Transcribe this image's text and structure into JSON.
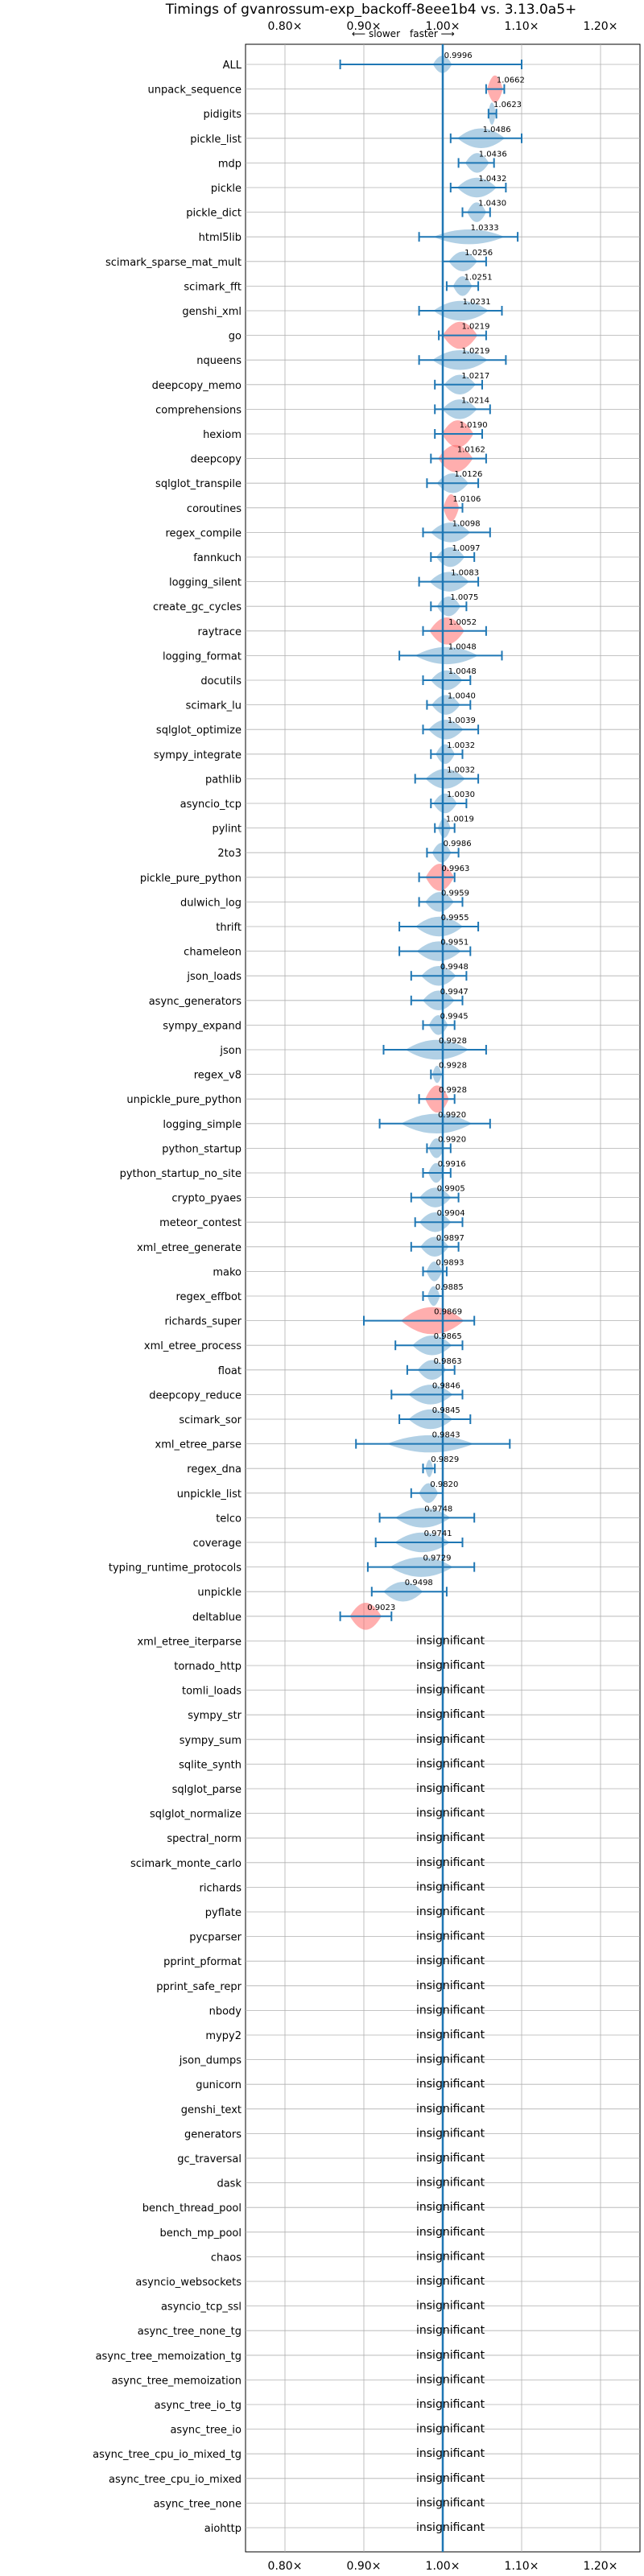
{
  "chart_data": {
    "type": "violin",
    "title": "Timings of gvanrossum-exp_backoff-8eee1b4 vs. 3.13.0a5+",
    "direction_labels": {
      "slower": "⟵ slower",
      "faster": "faster ⟶"
    },
    "x_ticks": [
      "0.80×",
      "0.90×",
      "1.00×",
      "1.10×",
      "1.20×"
    ],
    "x_tick_values": [
      0.8,
      0.9,
      1.0,
      1.1,
      1.2
    ],
    "xlim": [
      0.75,
      1.25
    ],
    "grid": true,
    "insignificant_label": "insignificant",
    "benchmarks": [
      {
        "name": "ALL",
        "value": 0.9996,
        "value_label": "0.9996",
        "err": [
          0.87,
          1.1
        ],
        "width": 0.35,
        "spread": 0.012,
        "color": "blue"
      },
      {
        "name": "unpack_sequence",
        "value": 1.0662,
        "value_label": "1.0662",
        "err": [
          1.055,
          1.078
        ],
        "width": 0.55,
        "spread": 0.01,
        "color": "red"
      },
      {
        "name": "pidigits",
        "value": 1.0623,
        "value_label": "1.0623",
        "err": [
          1.058,
          1.068
        ],
        "width": 0.45,
        "spread": 0.005,
        "color": "blue"
      },
      {
        "name": "pickle_list",
        "value": 1.0486,
        "value_label": "1.0486",
        "err": [
          1.01,
          1.1
        ],
        "width": 0.4,
        "spread": 0.03,
        "color": "blue"
      },
      {
        "name": "mdp",
        "value": 1.0436,
        "value_label": "1.0436",
        "err": [
          1.02,
          1.065
        ],
        "width": 0.4,
        "spread": 0.015,
        "color": "blue"
      },
      {
        "name": "pickle",
        "value": 1.0432,
        "value_label": "1.0432",
        "err": [
          1.01,
          1.08
        ],
        "width": 0.4,
        "spread": 0.025,
        "color": "blue"
      },
      {
        "name": "pickle_dict",
        "value": 1.043,
        "value_label": "1.0430",
        "err": [
          1.025,
          1.06
        ],
        "width": 0.4,
        "spread": 0.012,
        "color": "blue"
      },
      {
        "name": "html5lib",
        "value": 1.0333,
        "value_label": "1.0333",
        "err": [
          0.97,
          1.095
        ],
        "width": 0.3,
        "spread": 0.045,
        "color": "blue"
      },
      {
        "name": "scimark_sparse_mat_mult",
        "value": 1.0256,
        "value_label": "1.0256",
        "err": [
          1.0,
          1.055
        ],
        "width": 0.4,
        "spread": 0.018,
        "color": "blue"
      },
      {
        "name": "scimark_fft",
        "value": 1.0251,
        "value_label": "1.0251",
        "err": [
          1.005,
          1.045
        ],
        "width": 0.4,
        "spread": 0.012,
        "color": "blue"
      },
      {
        "name": "genshi_xml",
        "value": 1.0231,
        "value_label": "1.0231",
        "err": [
          0.97,
          1.075
        ],
        "width": 0.4,
        "spread": 0.035,
        "color": "blue"
      },
      {
        "name": "go",
        "value": 1.0219,
        "value_label": "1.0219",
        "err": [
          0.995,
          1.055
        ],
        "width": 0.55,
        "spread": 0.022,
        "color": "red"
      },
      {
        "name": "nqueens",
        "value": 1.0219,
        "value_label": "1.0219",
        "err": [
          0.97,
          1.08
        ],
        "width": 0.4,
        "spread": 0.035,
        "color": "blue"
      },
      {
        "name": "deepcopy_memo",
        "value": 1.0217,
        "value_label": "1.0217",
        "err": [
          0.99,
          1.05
        ],
        "width": 0.4,
        "spread": 0.02,
        "color": "blue"
      },
      {
        "name": "comprehensions",
        "value": 1.0214,
        "value_label": "1.0214",
        "err": [
          0.99,
          1.06
        ],
        "width": 0.4,
        "spread": 0.022,
        "color": "blue"
      },
      {
        "name": "hexiom",
        "value": 1.019,
        "value_label": "1.0190",
        "err": [
          0.99,
          1.05
        ],
        "width": 0.55,
        "spread": 0.02,
        "color": "red"
      },
      {
        "name": "deepcopy",
        "value": 1.0162,
        "value_label": "1.0162",
        "err": [
          0.985,
          1.055
        ],
        "width": 0.55,
        "spread": 0.022,
        "color": "red"
      },
      {
        "name": "sqlglot_transpile",
        "value": 1.0126,
        "value_label": "1.0126",
        "err": [
          0.98,
          1.045
        ],
        "width": 0.4,
        "spread": 0.02,
        "color": "blue"
      },
      {
        "name": "coroutines",
        "value": 1.0106,
        "value_label": "1.0106",
        "err": [
          1.0,
          1.025
        ],
        "width": 0.55,
        "spread": 0.01,
        "color": "red"
      },
      {
        "name": "regex_compile",
        "value": 1.0098,
        "value_label": "1.0098",
        "err": [
          0.975,
          1.06
        ],
        "width": 0.4,
        "spread": 0.025,
        "color": "blue"
      },
      {
        "name": "fannkuch",
        "value": 1.0097,
        "value_label": "1.0097",
        "err": [
          0.985,
          1.04
        ],
        "width": 0.4,
        "spread": 0.018,
        "color": "blue"
      },
      {
        "name": "logging_silent",
        "value": 1.0083,
        "value_label": "1.0083",
        "err": [
          0.97,
          1.045
        ],
        "width": 0.4,
        "spread": 0.025,
        "color": "blue"
      },
      {
        "name": "create_gc_cycles",
        "value": 1.0075,
        "value_label": "1.0075",
        "err": [
          0.985,
          1.03
        ],
        "width": 0.4,
        "spread": 0.015,
        "color": "blue"
      },
      {
        "name": "raytrace",
        "value": 1.0052,
        "value_label": "1.0052",
        "err": [
          0.975,
          1.055
        ],
        "width": 0.55,
        "spread": 0.022,
        "color": "red"
      },
      {
        "name": "logging_format",
        "value": 1.0048,
        "value_label": "1.0048",
        "err": [
          0.945,
          1.075
        ],
        "width": 0.35,
        "spread": 0.04,
        "color": "blue"
      },
      {
        "name": "docutils",
        "value": 1.0048,
        "value_label": "1.0048",
        "err": [
          0.975,
          1.035
        ],
        "width": 0.4,
        "spread": 0.02,
        "color": "blue"
      },
      {
        "name": "scimark_lu",
        "value": 1.004,
        "value_label": "1.0040",
        "err": [
          0.98,
          1.035
        ],
        "width": 0.4,
        "spread": 0.018,
        "color": "blue"
      },
      {
        "name": "sqlglot_optimize",
        "value": 1.0039,
        "value_label": "1.0039",
        "err": [
          0.975,
          1.045
        ],
        "width": 0.4,
        "spread": 0.022,
        "color": "blue"
      },
      {
        "name": "sympy_integrate",
        "value": 1.0032,
        "value_label": "1.0032",
        "err": [
          0.985,
          1.025
        ],
        "width": 0.4,
        "spread": 0.012,
        "color": "blue"
      },
      {
        "name": "pathlib",
        "value": 1.0032,
        "value_label": "1.0032",
        "err": [
          0.965,
          1.045
        ],
        "width": 0.4,
        "spread": 0.025,
        "color": "blue"
      },
      {
        "name": "asyncio_tcp",
        "value": 1.003,
        "value_label": "1.0030",
        "err": [
          0.985,
          1.03
        ],
        "width": 0.4,
        "spread": 0.015,
        "color": "blue"
      },
      {
        "name": "pylint",
        "value": 1.0019,
        "value_label": "1.0019",
        "err": [
          0.99,
          1.015
        ],
        "width": 0.4,
        "spread": 0.008,
        "color": "blue"
      },
      {
        "name": "2to3",
        "value": 0.9986,
        "value_label": "0.9986",
        "err": [
          0.98,
          1.02
        ],
        "width": 0.4,
        "spread": 0.012,
        "color": "blue"
      },
      {
        "name": "pickle_pure_python",
        "value": 0.9963,
        "value_label": "0.9963",
        "err": [
          0.97,
          1.015
        ],
        "width": 0.55,
        "spread": 0.018,
        "color": "red"
      },
      {
        "name": "dulwich_log",
        "value": 0.9959,
        "value_label": "0.9959",
        "err": [
          0.97,
          1.025
        ],
        "width": 0.4,
        "spread": 0.018,
        "color": "blue"
      },
      {
        "name": "thrift",
        "value": 0.9955,
        "value_label": "0.9955",
        "err": [
          0.945,
          1.045
        ],
        "width": 0.4,
        "spread": 0.03,
        "color": "blue"
      },
      {
        "name": "chameleon",
        "value": 0.9951,
        "value_label": "0.9951",
        "err": [
          0.945,
          1.035
        ],
        "width": 0.4,
        "spread": 0.028,
        "color": "blue"
      },
      {
        "name": "json_loads",
        "value": 0.9948,
        "value_label": "0.9948",
        "err": [
          0.96,
          1.03
        ],
        "width": 0.4,
        "spread": 0.022,
        "color": "blue"
      },
      {
        "name": "async_generators",
        "value": 0.9947,
        "value_label": "0.9947",
        "err": [
          0.96,
          1.025
        ],
        "width": 0.4,
        "spread": 0.02,
        "color": "blue"
      },
      {
        "name": "sympy_expand",
        "value": 0.9945,
        "value_label": "0.9945",
        "err": [
          0.975,
          1.015
        ],
        "width": 0.4,
        "spread": 0.012,
        "color": "blue"
      },
      {
        "name": "json",
        "value": 0.9928,
        "value_label": "0.9928",
        "err": [
          0.925,
          1.055
        ],
        "width": 0.4,
        "spread": 0.04,
        "color": "blue"
      },
      {
        "name": "regex_v8",
        "value": 0.9928,
        "value_label": "0.9928",
        "err": [
          0.985,
          1.0
        ],
        "width": 0.35,
        "spread": 0.006,
        "color": "blue"
      },
      {
        "name": "unpickle_pure_python",
        "value": 0.9928,
        "value_label": "0.9928",
        "err": [
          0.97,
          1.015
        ],
        "width": 0.55,
        "spread": 0.015,
        "color": "red"
      },
      {
        "name": "logging_simple",
        "value": 0.992,
        "value_label": "0.9920",
        "err": [
          0.92,
          1.06
        ],
        "width": 0.4,
        "spread": 0.045,
        "color": "blue"
      },
      {
        "name": "python_startup",
        "value": 0.992,
        "value_label": "0.9920",
        "err": [
          0.98,
          1.01
        ],
        "width": 0.4,
        "spread": 0.01,
        "color": "blue"
      },
      {
        "name": "python_startup_no_site",
        "value": 0.9916,
        "value_label": "0.9916",
        "err": [
          0.975,
          1.01
        ],
        "width": 0.4,
        "spread": 0.01,
        "color": "blue"
      },
      {
        "name": "crypto_pyaes",
        "value": 0.9905,
        "value_label": "0.9905",
        "err": [
          0.96,
          1.02
        ],
        "width": 0.4,
        "spread": 0.02,
        "color": "blue"
      },
      {
        "name": "meteor_contest",
        "value": 0.9904,
        "value_label": "0.9904",
        "err": [
          0.965,
          1.025
        ],
        "width": 0.4,
        "spread": 0.02,
        "color": "blue"
      },
      {
        "name": "xml_etree_generate",
        "value": 0.9897,
        "value_label": "0.9897",
        "err": [
          0.96,
          1.02
        ],
        "width": 0.4,
        "spread": 0.018,
        "color": "blue"
      },
      {
        "name": "mako",
        "value": 0.9893,
        "value_label": "0.9893",
        "err": [
          0.975,
          1.005
        ],
        "width": 0.4,
        "spread": 0.01,
        "color": "blue"
      },
      {
        "name": "regex_effbot",
        "value": 0.9885,
        "value_label": "0.9885",
        "err": [
          0.975,
          1.0
        ],
        "width": 0.4,
        "spread": 0.008,
        "color": "blue"
      },
      {
        "name": "richards_super",
        "value": 0.9869,
        "value_label": "0.9869",
        "err": [
          0.9,
          1.04
        ],
        "width": 0.55,
        "spread": 0.04,
        "color": "red"
      },
      {
        "name": "xml_etree_process",
        "value": 0.9865,
        "value_label": "0.9865",
        "err": [
          0.94,
          1.025
        ],
        "width": 0.4,
        "spread": 0.025,
        "color": "blue"
      },
      {
        "name": "float",
        "value": 0.9863,
        "value_label": "0.9863",
        "err": [
          0.955,
          1.015
        ],
        "width": 0.4,
        "spread": 0.018,
        "color": "blue"
      },
      {
        "name": "deepcopy_reduce",
        "value": 0.9846,
        "value_label": "0.9846",
        "err": [
          0.935,
          1.025
        ],
        "width": 0.4,
        "spread": 0.028,
        "color": "blue"
      },
      {
        "name": "scimark_sor",
        "value": 0.9845,
        "value_label": "0.9845",
        "err": [
          0.945,
          1.035
        ],
        "width": 0.4,
        "spread": 0.028,
        "color": "blue"
      },
      {
        "name": "xml_etree_parse",
        "value": 0.9843,
        "value_label": "0.9843",
        "err": [
          0.89,
          1.085
        ],
        "width": 0.35,
        "spread": 0.055,
        "color": "blue"
      },
      {
        "name": "regex_dna",
        "value": 0.9829,
        "value_label": "0.9829",
        "err": [
          0.975,
          0.99
        ],
        "width": 0.35,
        "spread": 0.005,
        "color": "blue"
      },
      {
        "name": "unpickle_list",
        "value": 0.982,
        "value_label": "0.9820",
        "err": [
          0.96,
          1.0
        ],
        "width": 0.4,
        "spread": 0.012,
        "color": "blue"
      },
      {
        "name": "telco",
        "value": 0.9748,
        "value_label": "0.9748",
        "err": [
          0.92,
          1.04
        ],
        "width": 0.4,
        "spread": 0.035,
        "color": "blue"
      },
      {
        "name": "coverage",
        "value": 0.9741,
        "value_label": "0.9741",
        "err": [
          0.915,
          1.025
        ],
        "width": 0.4,
        "spread": 0.035,
        "color": "blue"
      },
      {
        "name": "typing_runtime_protocols",
        "value": 0.9729,
        "value_label": "0.9729",
        "err": [
          0.905,
          1.04
        ],
        "width": 0.4,
        "spread": 0.04,
        "color": "blue"
      },
      {
        "name": "unpickle",
        "value": 0.9498,
        "value_label": "0.9498",
        "err": [
          0.91,
          1.005
        ],
        "width": 0.4,
        "spread": 0.025,
        "color": "blue"
      },
      {
        "name": "deltablue",
        "value": 0.9023,
        "value_label": "0.9023",
        "err": [
          0.87,
          0.935
        ],
        "width": 0.55,
        "spread": 0.02,
        "color": "red"
      },
      {
        "name": "xml_etree_iterparse",
        "insignificant": true
      },
      {
        "name": "tornado_http",
        "insignificant": true
      },
      {
        "name": "tomli_loads",
        "insignificant": true
      },
      {
        "name": "sympy_str",
        "insignificant": true
      },
      {
        "name": "sympy_sum",
        "insignificant": true
      },
      {
        "name": "sqlite_synth",
        "insignificant": true
      },
      {
        "name": "sqlglot_parse",
        "insignificant": true
      },
      {
        "name": "sqlglot_normalize",
        "insignificant": true
      },
      {
        "name": "spectral_norm",
        "insignificant": true
      },
      {
        "name": "scimark_monte_carlo",
        "insignificant": true
      },
      {
        "name": "richards",
        "insignificant": true
      },
      {
        "name": "pyflate",
        "insignificant": true
      },
      {
        "name": "pycparser",
        "insignificant": true
      },
      {
        "name": "pprint_pformat",
        "insignificant": true
      },
      {
        "name": "pprint_safe_repr",
        "insignificant": true
      },
      {
        "name": "nbody",
        "insignificant": true
      },
      {
        "name": "mypy2",
        "insignificant": true
      },
      {
        "name": "json_dumps",
        "insignificant": true
      },
      {
        "name": "gunicorn",
        "insignificant": true
      },
      {
        "name": "genshi_text",
        "insignificant": true
      },
      {
        "name": "generators",
        "insignificant": true
      },
      {
        "name": "gc_traversal",
        "insignificant": true
      },
      {
        "name": "dask",
        "insignificant": true
      },
      {
        "name": "bench_thread_pool",
        "insignificant": true
      },
      {
        "name": "bench_mp_pool",
        "insignificant": true
      },
      {
        "name": "chaos",
        "insignificant": true
      },
      {
        "name": "asyncio_websockets",
        "insignificant": true
      },
      {
        "name": "asyncio_tcp_ssl",
        "insignificant": true
      },
      {
        "name": "async_tree_none_tg",
        "insignificant": true
      },
      {
        "name": "async_tree_memoization_tg",
        "insignificant": true
      },
      {
        "name": "async_tree_memoization",
        "insignificant": true
      },
      {
        "name": "async_tree_io_tg",
        "insignificant": true
      },
      {
        "name": "async_tree_io",
        "insignificant": true
      },
      {
        "name": "async_tree_cpu_io_mixed_tg",
        "insignificant": true
      },
      {
        "name": "async_tree_cpu_io_mixed",
        "insignificant": true
      },
      {
        "name": "async_tree_none",
        "insignificant": true
      },
      {
        "name": "aiohttp",
        "insignificant": true
      }
    ]
  },
  "colors": {
    "violin_blue": "#1f77b4",
    "violin_red": "#ff6b6b",
    "errorbar": "#1f77b4",
    "grid": "#b0b0b0",
    "axis": "#000000"
  }
}
